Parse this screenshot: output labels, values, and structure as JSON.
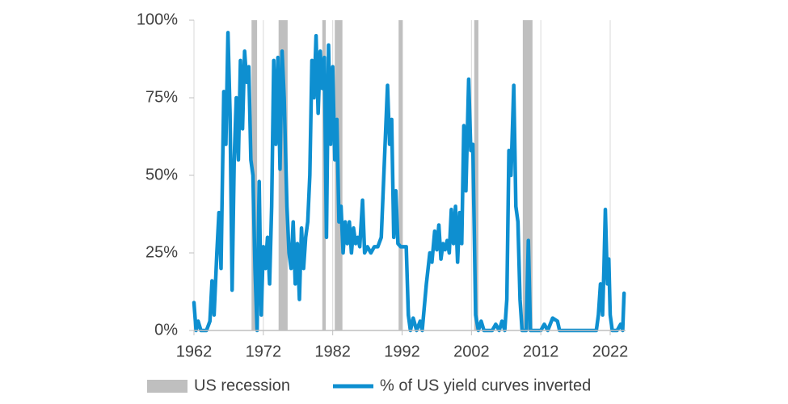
{
  "chart_data": {
    "type": "line",
    "xlim": [
      1962,
      2024.2
    ],
    "xticks": [
      1962,
      1972,
      1982,
      1992,
      2002,
      2012,
      2022
    ],
    "ylim": [
      0,
      100
    ],
    "yticks": [
      {
        "value": 0,
        "label": "0%"
      },
      {
        "value": 25,
        "label": "25%"
      },
      {
        "value": 50,
        "label": "50%"
      },
      {
        "value": 75,
        "label": "75%"
      },
      {
        "value": 100,
        "label": "100%"
      }
    ],
    "grid": "x",
    "legend": "bottom",
    "recessions": {
      "name": "US recession",
      "color": "#bfbfbf",
      "periods": [
        [
          1970.3,
          1971.1
        ],
        [
          1974.2,
          1975.5
        ],
        [
          1980.5,
          1981.0
        ],
        [
          1982.3,
          1983.4
        ],
        [
          1991.5,
          1992.1
        ],
        [
          2002.4,
          2003.0
        ],
        [
          2009.4,
          2010.8
        ]
      ]
    },
    "series": [
      {
        "name": "% of US yield curves inverted",
        "color": "#0e8fd0",
        "x": [
          1962.0,
          1962.3,
          1962.6,
          1963.0,
          1963.8,
          1964.3,
          1964.6,
          1964.9,
          1965.3,
          1965.6,
          1965.9,
          1966.3,
          1966.6,
          1966.9,
          1967.2,
          1967.5,
          1967.8,
          1968.1,
          1968.4,
          1968.7,
          1969.0,
          1969.3,
          1969.6,
          1969.9,
          1970.2,
          1970.5,
          1970.8,
          1971.1,
          1971.4,
          1971.7,
          1972.0,
          1972.3,
          1972.6,
          1972.9,
          1973.2,
          1973.5,
          1973.8,
          1974.1,
          1974.4,
          1974.7,
          1975.0,
          1975.4,
          1975.7,
          1976.0,
          1976.3,
          1976.6,
          1976.9,
          1977.2,
          1977.5,
          1977.8,
          1978.1,
          1978.4,
          1978.7,
          1979.0,
          1979.3,
          1979.6,
          1979.9,
          1980.2,
          1980.5,
          1980.8,
          1981.1,
          1981.4,
          1981.7,
          1982.0,
          1982.3,
          1982.6,
          1982.9,
          1983.2,
          1983.5,
          1983.8,
          1984.1,
          1984.4,
          1984.7,
          1985.0,
          1985.3,
          1985.6,
          1985.9,
          1986.3,
          1986.6,
          1987.0,
          1987.5,
          1988.0,
          1988.5,
          1989.0,
          1989.9,
          1990.2,
          1990.5,
          1990.8,
          1991.1,
          1991.4,
          1991.8,
          1992.2,
          1992.6,
          1992.9,
          1993.2,
          1993.6,
          1994.1,
          1994.6,
          1994.9,
          1995.5,
          1996.0,
          1996.3,
          1996.7,
          1997.0,
          1997.3,
          1997.6,
          1997.9,
          1998.2,
          1998.5,
          1998.8,
          1999.1,
          1999.4,
          1999.7,
          2000.0,
          2000.3,
          2000.6,
          2000.9,
          2001.2,
          2001.6,
          2001.9,
          2002.2,
          2002.6,
          2003.0,
          2003.4,
          2003.8,
          2005.0,
          2005.5,
          2006.0,
          2006.4,
          2006.8,
          2007.1,
          2007.4,
          2007.7,
          2008.1,
          2008.4,
          2008.7,
          2009.0,
          2009.3,
          2009.9,
          2010.2,
          2010.5,
          2011.0,
          2012.0,
          2012.5,
          2013.0,
          2013.7,
          2014.4,
          2014.7,
          2016.0,
          2018.0,
          2020.0,
          2020.3,
          2020.6,
          2020.9,
          2021.1,
          2021.3,
          2021.6,
          2021.8,
          2022.0,
          2022.3,
          2023.0,
          2023.5,
          2023.8,
          2024.0
        ],
        "values": [
          9,
          0,
          3,
          0,
          0,
          3,
          16,
          5,
          25,
          38,
          20,
          77,
          60,
          96,
          70,
          13,
          55,
          75,
          55,
          87,
          65,
          90,
          80,
          85,
          55,
          50,
          20,
          0,
          48,
          5,
          27,
          20,
          30,
          15,
          40,
          87,
          60,
          88,
          52,
          90,
          75,
          40,
          25,
          20,
          35,
          15,
          28,
          10,
          33,
          20,
          30,
          35,
          50,
          87,
          75,
          95,
          70,
          90,
          78,
          88,
          30,
          92,
          60,
          85,
          55,
          68,
          35,
          40,
          25,
          35,
          28,
          35,
          25,
          33,
          28,
          30,
          27,
          42,
          25,
          27,
          25,
          27,
          27,
          30,
          79,
          60,
          68,
          30,
          45,
          28,
          27,
          27,
          27,
          5,
          0,
          4,
          0,
          3,
          0,
          15,
          25,
          22,
          32,
          26,
          34,
          23,
          28,
          26,
          29,
          25,
          39,
          28,
          40,
          22,
          38,
          28,
          66,
          45,
          81,
          58,
          60,
          5,
          0,
          3,
          0,
          0,
          2,
          0,
          3,
          0,
          10,
          58,
          50,
          79,
          40,
          35,
          10,
          0,
          0,
          29,
          0,
          0,
          0,
          2,
          0,
          4,
          3,
          0,
          0,
          0,
          0,
          5,
          15,
          5,
          20,
          39,
          15,
          23,
          5,
          0,
          0,
          2,
          0,
          12
        ]
      }
    ]
  }
}
